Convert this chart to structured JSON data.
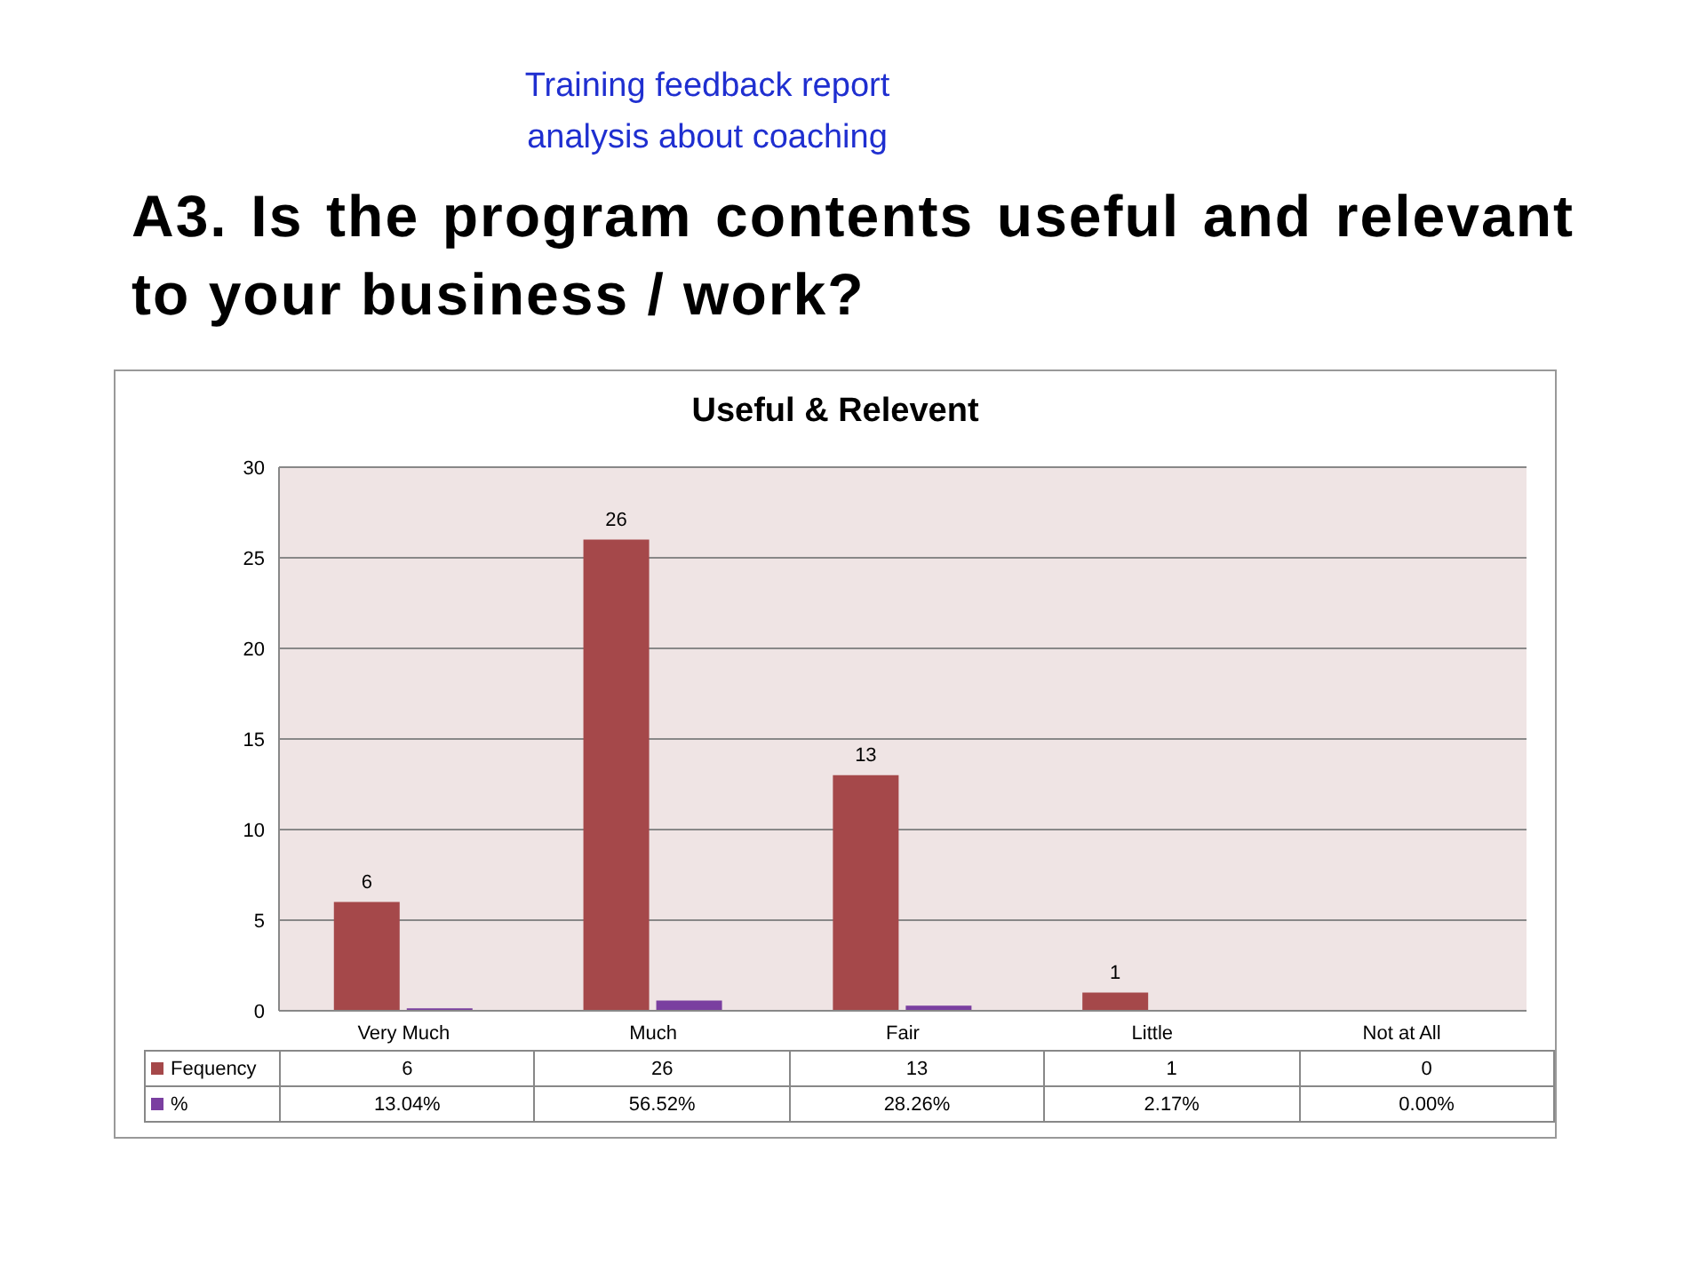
{
  "chart_data": {
    "type": "bar",
    "title": "Useful & Relevent",
    "subtitle": "A3. Is the program contents useful and relevant to your business / work?",
    "annotations": [
      "Training feedback report analysis about coaching"
    ],
    "categories": [
      "Very Much",
      "Much",
      "Fair",
      "Little",
      "Not at All"
    ],
    "series": [
      {
        "name": "Fequency",
        "color": "#a5484a",
        "values": [
          6,
          26,
          13,
          1,
          0
        ],
        "value_labels": [
          "6",
          "26",
          "13",
          "1",
          "0"
        ]
      },
      {
        "name": "%",
        "color": "#7a3fa0",
        "values": [
          0.1304,
          0.5652,
          0.2826,
          0.0217,
          0
        ],
        "value_labels": [
          "13.04%",
          "56.52%",
          "28.26%",
          "2.17%",
          "0.00%"
        ]
      }
    ],
    "ylim": [
      0,
      30
    ],
    "yticks": [
      0,
      5,
      10,
      15,
      20,
      25,
      30
    ],
    "grid": "y",
    "legend": "bottom"
  }
}
